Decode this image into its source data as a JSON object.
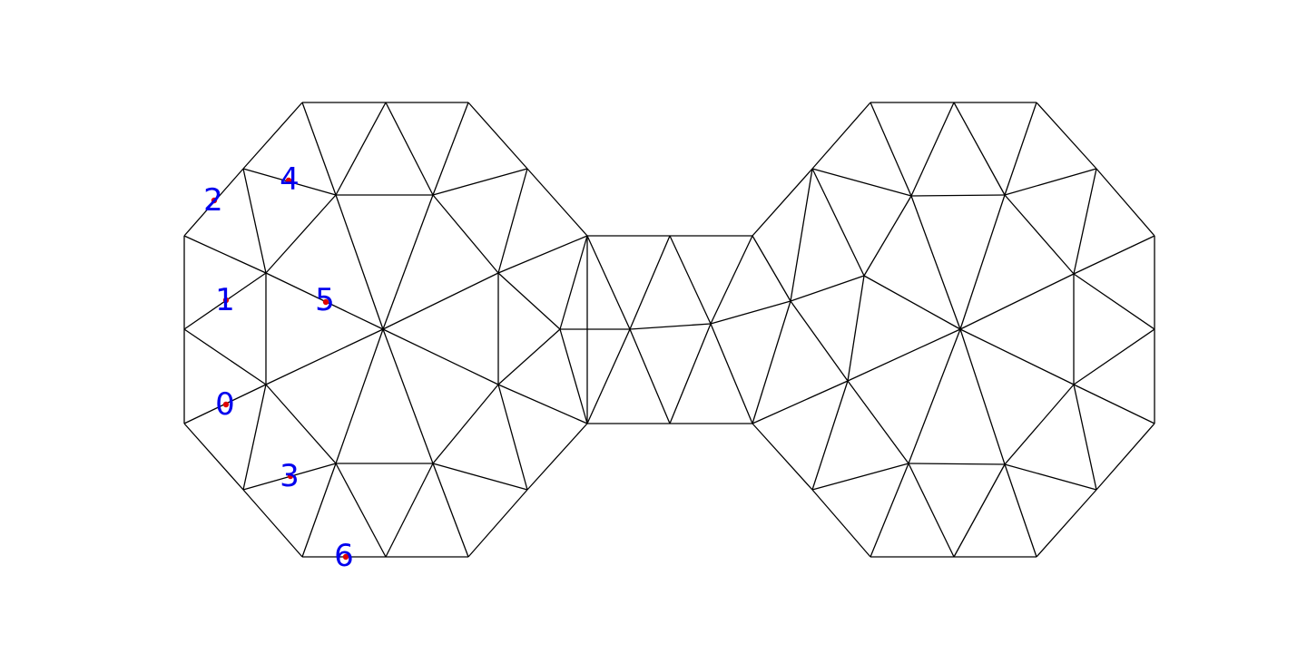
{
  "labels": {
    "colors": {
      "text": "#0000ee",
      "marker": "#e00000",
      "edges": "#000000"
    },
    "items": [
      {
        "id": "0",
        "text": "0"
      },
      {
        "id": "1",
        "text": "1"
      },
      {
        "id": "2",
        "text": "2"
      },
      {
        "id": "3",
        "text": "3"
      },
      {
        "id": "4",
        "text": "4"
      },
      {
        "id": "5",
        "text": "5"
      },
      {
        "id": "6",
        "text": "6"
      }
    ]
  }
}
